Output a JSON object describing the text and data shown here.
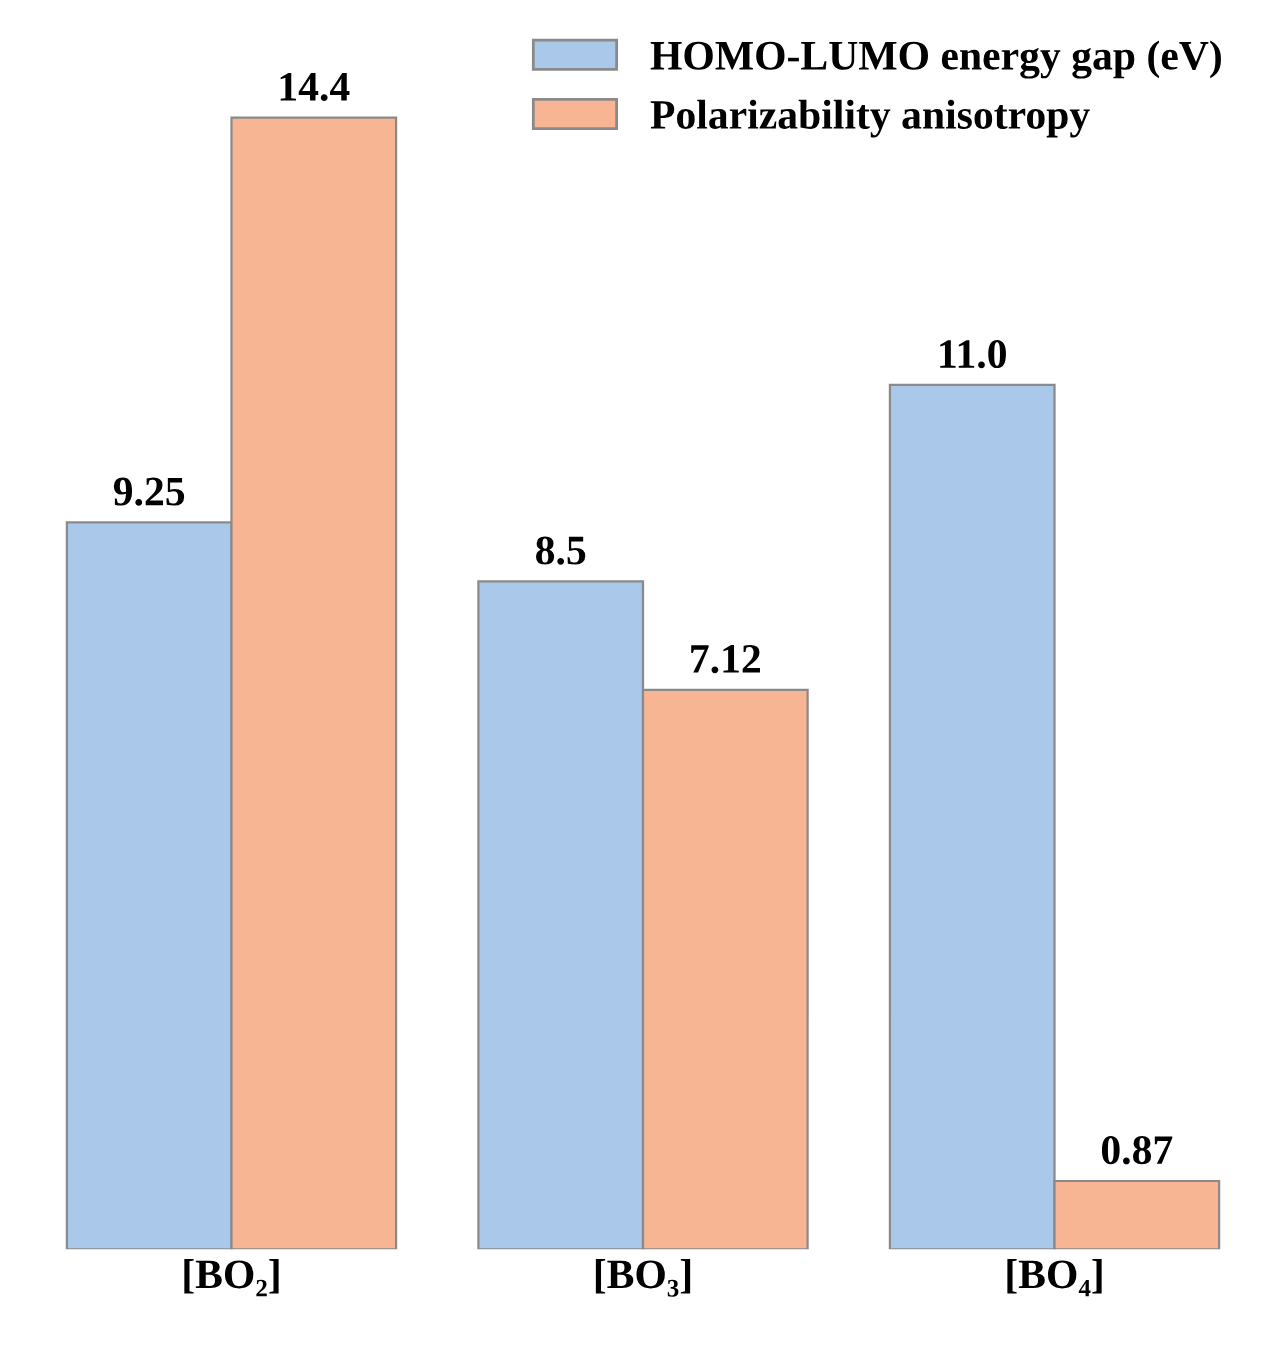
{
  "chart_data": {
    "type": "bar",
    "categories": [
      "[BO₂]",
      "[BO₃]",
      "[BO₄]"
    ],
    "series": [
      {
        "name": "HOMO-LUMO energy gap (eV)",
        "color": "#a9c8ea",
        "values": [
          9.25,
          8.5,
          11.0
        ],
        "value_labels": [
          "9.25",
          "8.5",
          "11.0"
        ]
      },
      {
        "name": "Polarizability anisotropy",
        "color": "#f7b593",
        "values": [
          14.4,
          7.12,
          0.87
        ],
        "value_labels": [
          "14.4",
          "7.12",
          "0.87"
        ]
      }
    ],
    "legend": "top right",
    "grid": false
  }
}
